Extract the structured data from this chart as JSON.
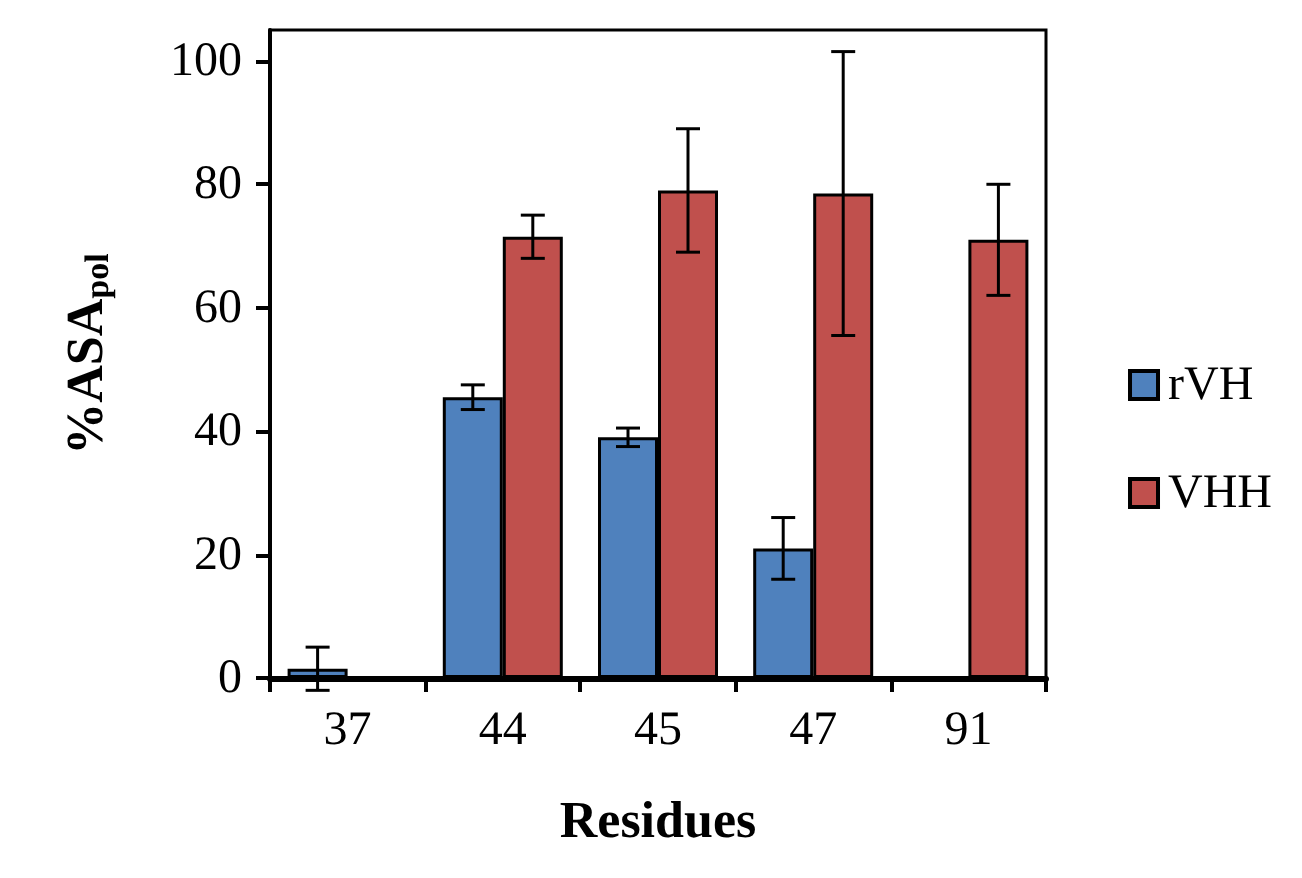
{
  "chart_data": {
    "type": "bar",
    "xlabel": "Residues",
    "ylabel": "%ASA$_{pol}$",
    "categories": [
      "37",
      "44",
      "45",
      "47",
      "91"
    ],
    "series": [
      {
        "name": "rVH",
        "color": "#4f81bd",
        "values": [
          1.5,
          45.5,
          39,
          21,
          null
        ],
        "errors": [
          3.5,
          2,
          1.5,
          5,
          null
        ]
      },
      {
        "name": "VHH",
        "color": "#c0504d",
        "values": [
          null,
          71.5,
          79,
          78.5,
          71
        ],
        "errors": [
          null,
          3.5,
          10,
          23,
          9
        ]
      }
    ],
    "ylim": [
      0,
      105
    ],
    "yticks": [
      0,
      20,
      40,
      60,
      80,
      100
    ],
    "grid": false,
    "legend": "right"
  }
}
